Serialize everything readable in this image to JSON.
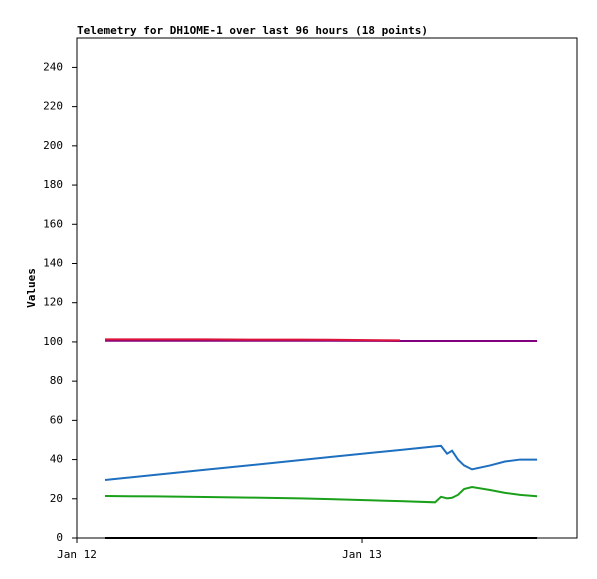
{
  "chart_data": {
    "type": "line",
    "title": "Telemetry for DH1OME-1 over last 96 hours (18 points)",
    "y_label": "Values",
    "x": [
      2.36,
      6.57,
      10.78,
      14.57,
      18.78,
      21.31,
      27.2,
      30.15,
      30.65,
      31.16,
      31.58,
      32.08,
      32.59,
      33.26,
      34.78,
      36.04,
      37.31,
      38.74
    ],
    "xlim": [
      0,
      42.1
    ],
    "xticks": [
      {
        "value": 0,
        "label": "Jan 12"
      },
      {
        "value": 24,
        "label": "Jan 13"
      }
    ],
    "ylim": [
      0,
      255
    ],
    "yticks": [
      0,
      20,
      40,
      60,
      80,
      100,
      120,
      140,
      160,
      180,
      200,
      220,
      240
    ],
    "series": [
      {
        "color": "#800080",
        "values": [
          100.6,
          100.6,
          100.6,
          100.6,
          100.6,
          100.6,
          100.5,
          100.5,
          100.5,
          100.5,
          100.5,
          100.5,
          100.5,
          100.5,
          100.5,
          100.5,
          100.5,
          100.5
        ]
      },
      {
        "color": "#dc143c",
        "values": [
          101.3,
          101.3,
          101.3,
          101.2,
          101.2,
          101.1,
          100.8,
          null,
          null,
          null,
          null,
          null,
          null,
          null,
          null,
          null,
          null,
          null
        ]
      },
      {
        "color": "#1e6fbf",
        "values": [
          29.6,
          32.2,
          34.8,
          37.1,
          39.7,
          41.3,
          44.9,
          46.7,
          47.0,
          43.0,
          44.5,
          40.0,
          37.0,
          35.0,
          37.0,
          39.0,
          40.0,
          40.0
        ]
      },
      {
        "color": "#1aa01a",
        "values": [
          21.4,
          21.2,
          20.9,
          20.6,
          20.2,
          19.8,
          18.8,
          18.2,
          21.0,
          20.2,
          20.5,
          22.0,
          25.0,
          26.0,
          24.5,
          23.0,
          22.0,
          21.3
        ]
      },
      {
        "color": "#000000",
        "values": [
          0,
          0,
          0,
          0,
          0,
          0,
          0,
          0,
          0,
          0,
          0,
          0,
          0,
          0,
          0,
          0,
          0,
          0
        ]
      }
    ]
  }
}
